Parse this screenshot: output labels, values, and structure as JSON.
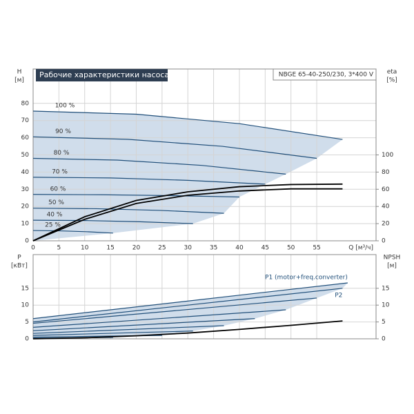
{
  "chart_data": [
    {
      "type": "line",
      "title": "Рабочие характеристики насоса",
      "subtitle": "NBGE 65-40-250/230, 3*400 V",
      "y_label": "H",
      "y_unit": "[м]",
      "y2_label": "eta",
      "y2_unit": "[%]",
      "x_label": "Q [м³/ч]",
      "xlim": [
        0,
        66.5
      ],
      "xticks": [
        0,
        5,
        10,
        15,
        20,
        25,
        30,
        35,
        40,
        45,
        50,
        55
      ],
      "ylim": [
        0,
        100
      ],
      "yticks": [
        0,
        10,
        20,
        30,
        40,
        50,
        60,
        70,
        80
      ],
      "y2lim": [
        0,
        200
      ],
      "y2ticks": [
        0,
        20,
        40,
        60,
        80,
        100
      ],
      "grid": true,
      "show_xtick_labels": true,
      "fill": "#c8d7e8",
      "series_label_position": "start",
      "series": [
        {
          "name": "100 %",
          "color": "#1f4e79",
          "x": [
            0,
            20,
            40,
            60
          ],
          "values": [
            75.5,
            73.7,
            68.2,
            59
          ]
        },
        {
          "name": "90 %",
          "color": "#1f4e79",
          "x": [
            0,
            18.3,
            36.7,
            55
          ],
          "values": [
            60.5,
            59.1,
            55.0,
            48
          ]
        },
        {
          "name": "80 %",
          "color": "#1f4e79",
          "x": [
            0,
            16.3,
            32.7,
            49
          ],
          "values": [
            48,
            47,
            43.9,
            38.8
          ]
        },
        {
          "name": "70 %",
          "color": "#1f4e79",
          "x": [
            0,
            15,
            30,
            45
          ],
          "values": [
            37,
            36.6,
            35.2,
            33
          ]
        },
        {
          "name": "60 %",
          "color": "#1f4e79",
          "x": [
            0,
            13.3,
            26.7,
            40
          ],
          "values": [
            27,
            26.8,
            26.3,
            25.5
          ]
        },
        {
          "name": "50 %",
          "color": "#1f4e79",
          "x": [
            0,
            12.3,
            24.7,
            37
          ],
          "values": [
            19,
            18.7,
            17.7,
            16
          ]
        },
        {
          "name": "40 %",
          "color": "#1f4e79",
          "x": [
            0,
            10.3,
            20.7,
            31
          ],
          "values": [
            12,
            11.8,
            11.1,
            10
          ]
        },
        {
          "name": "25 %",
          "color": "#1f4e79",
          "x": [
            0,
            5.2,
            10.3,
            15.5
          ],
          "values": [
            6,
            5.8,
            5.3,
            4.5
          ]
        },
        {
          "color": "#000000",
          "axis": "y2",
          "x": [
            0,
            10,
            20,
            30,
            40,
            50,
            60
          ],
          "values": [
            0,
            25,
            43.5,
            53,
            58,
            60.5,
            60.5
          ]
        },
        {
          "color": "#000000",
          "axis": "y2",
          "x": [
            0,
            10,
            20,
            30,
            40,
            50,
            60
          ],
          "values": [
            0,
            28,
            47,
            57,
            63,
            65.5,
            66
          ]
        }
      ]
    },
    {
      "type": "line",
      "y_label": "P",
      "y_unit": "[кВт]",
      "y2_label": "NPSH",
      "y2_unit": "[м]",
      "xlim": [
        0,
        66.5
      ],
      "xticks": [
        0,
        5,
        10,
        15,
        20,
        25,
        30,
        35,
        40,
        45,
        50,
        55
      ],
      "ylim": [
        0,
        25
      ],
      "yticks": [
        0,
        5,
        10,
        15
      ],
      "y2lim": [
        0,
        25
      ],
      "y2ticks": [
        0,
        5,
        10,
        15
      ],
      "grid": true,
      "show_xtick_labels": false,
      "fill": "#c8d7e8",
      "series_label_position": "end",
      "series": [
        {
          "name": "P1 (motor+freq.converter)",
          "color": "#1f4e79",
          "x": [
            0,
            61
          ],
          "values": [
            6,
            16.6
          ]
        },
        {
          "name": "P2",
          "color": "#1f4e79",
          "x": [
            0,
            60
          ],
          "values": [
            5,
            15
          ]
        },
        {
          "color": "#1f4e79",
          "x": [
            0,
            55
          ],
          "values": [
            4.6,
            12.1
          ]
        },
        {
          "color": "#1f4e79",
          "x": [
            0,
            49
          ],
          "values": [
            3.4,
            8.6
          ]
        },
        {
          "color": "#1f4e79",
          "x": [
            0,
            43
          ],
          "values": [
            2.4,
            6
          ]
        },
        {
          "color": "#1f4e79",
          "x": [
            0,
            37
          ],
          "values": [
            1.6,
            3.9
          ]
        },
        {
          "color": "#1f4e79",
          "x": [
            0,
            31
          ],
          "values": [
            1,
            2.3
          ]
        },
        {
          "color": "#1f4e79",
          "x": [
            0,
            25
          ],
          "values": [
            0.5,
            1
          ]
        },
        {
          "color": "#1f4e79",
          "x": [
            0,
            15.5
          ],
          "values": [
            0.2,
            0.4
          ]
        },
        {
          "color": "#000000",
          "axis": "y2",
          "x": [
            0,
            10,
            20,
            30,
            40,
            50,
            60
          ],
          "values": [
            0,
            0.3,
            0.9,
            1.7,
            2.8,
            4.0,
            5.3
          ]
        }
      ]
    }
  ]
}
